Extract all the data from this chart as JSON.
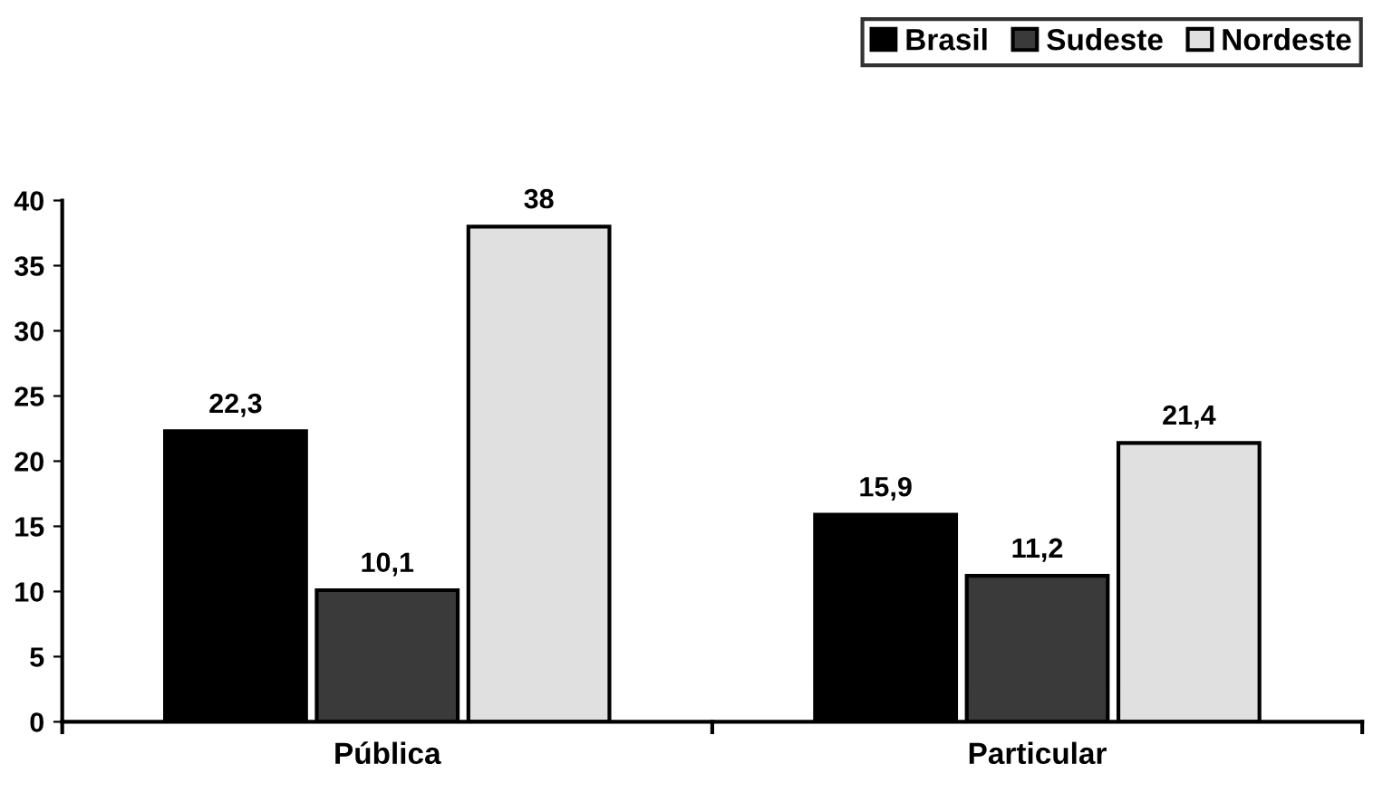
{
  "chart_data": {
    "type": "bar",
    "categories": [
      "Pública",
      "Particular"
    ],
    "series": [
      {
        "name": "Brasil",
        "color": "#000000",
        "values": [
          22.3,
          15.9
        ],
        "value_labels": [
          "22,3",
          "15,9"
        ]
      },
      {
        "name": "Sudeste",
        "color": "#3a3a3a",
        "values": [
          10.1,
          11.2
        ],
        "value_labels": [
          "10,1",
          "11,2"
        ]
      },
      {
        "name": "Nordeste",
        "color": "#e0e0e0",
        "values": [
          38,
          21.4
        ],
        "value_labels": [
          "38",
          "21,4"
        ]
      }
    ],
    "ylim": [
      0,
      40
    ],
    "yticks": [
      0,
      5,
      10,
      15,
      20,
      25,
      30,
      35,
      40
    ],
    "grid": false,
    "legend": "top right"
  }
}
